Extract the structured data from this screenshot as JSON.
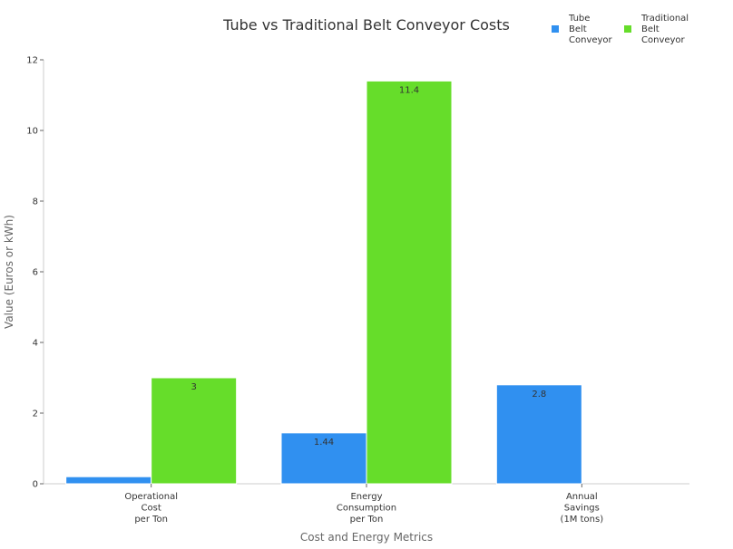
{
  "chart_data": {
    "type": "bar",
    "title": "Tube vs Traditional Belt Conveyor Costs",
    "xlabel": "Cost and Energy Metrics",
    "ylabel": "Value (Euros or kWh)",
    "categories": [
      [
        "Operational",
        "Cost",
        "per Ton"
      ],
      [
        "Energy",
        "Consumption",
        "per Ton"
      ],
      [
        "Annual",
        "Savings",
        "(1M tons)"
      ]
    ],
    "ylim": [
      0,
      12
    ],
    "yticks": [
      "0",
      "2",
      "4",
      "6",
      "8",
      "10",
      "12"
    ],
    "grid": false,
    "legend_position": "top-right",
    "series": [
      {
        "name": "Tube Belt Conveyor",
        "legend_lines": [
          "Tube",
          "Belt",
          "Conveyor"
        ],
        "color": "#3090f0",
        "values": [
          0.2,
          1.44,
          2.8
        ],
        "data_labels": [
          "",
          "1.44",
          "2.8"
        ]
      },
      {
        "name": "Traditional Belt Conveyor",
        "legend_lines": [
          "Traditional",
          "Belt",
          "Conveyor"
        ],
        "color": "#66dd2a",
        "values": [
          3,
          11.4,
          null
        ],
        "data_labels": [
          "3",
          "11.4",
          ""
        ]
      }
    ]
  }
}
